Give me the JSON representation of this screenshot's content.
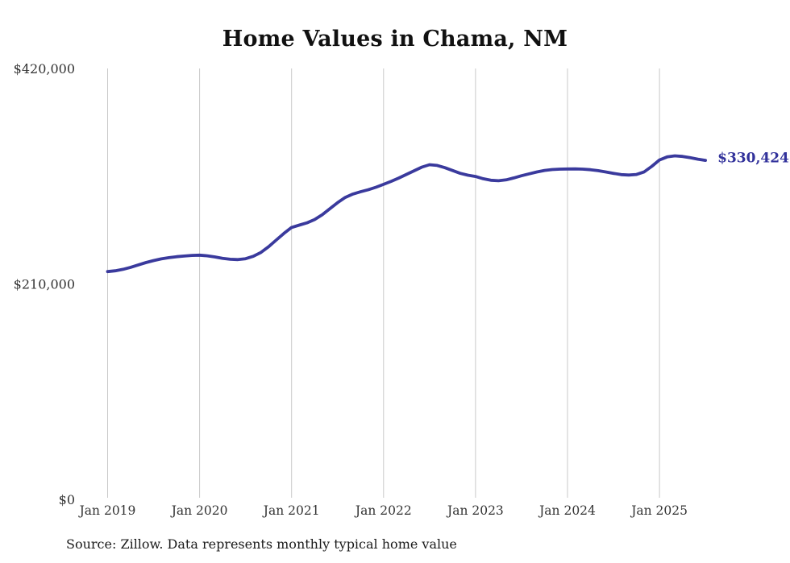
{
  "chart_data": {
    "type": "line",
    "title": "Home Values in Chama, NM",
    "source_note": "Source: Zillow. Data represents monthly typical home value",
    "end_label": "$330,424",
    "latest_value": 330424,
    "x_tick_labels": [
      "Jan 2019",
      "Jan 2020",
      "Jan 2021",
      "Jan 2022",
      "Jan 2023",
      "Jan 2024",
      "Jan 2025"
    ],
    "y_tick_labels": [
      "$0",
      "$210,000",
      "$420,000"
    ],
    "y_tick_values": [
      0,
      210000,
      420000
    ],
    "ylim": [
      0,
      420000
    ],
    "xlabel": "",
    "ylabel": "",
    "legend": "none",
    "grid": "vertical-year-gridlines",
    "series": [
      {
        "name": "Typical home value (monthly)",
        "months": [
          "2019-01",
          "2019-02",
          "2019-03",
          "2019-04",
          "2019-05",
          "2019-06",
          "2019-07",
          "2019-08",
          "2019-09",
          "2019-10",
          "2019-11",
          "2019-12",
          "2020-01",
          "2020-02",
          "2020-03",
          "2020-04",
          "2020-05",
          "2020-06",
          "2020-07",
          "2020-08",
          "2020-09",
          "2020-10",
          "2020-11",
          "2020-12",
          "2021-01",
          "2021-02",
          "2021-03",
          "2021-04",
          "2021-05",
          "2021-06",
          "2021-07",
          "2021-08",
          "2021-09",
          "2021-10",
          "2021-11",
          "2021-12",
          "2022-01",
          "2022-02",
          "2022-03",
          "2022-04",
          "2022-05",
          "2022-06",
          "2022-07",
          "2022-08",
          "2022-09",
          "2022-10",
          "2022-11",
          "2022-12",
          "2023-01",
          "2023-02",
          "2023-03",
          "2023-04",
          "2023-05",
          "2023-06",
          "2023-07",
          "2023-08",
          "2023-09",
          "2023-10",
          "2023-11",
          "2023-12",
          "2024-01",
          "2024-02",
          "2024-03",
          "2024-04",
          "2024-05",
          "2024-06",
          "2024-07",
          "2024-08",
          "2024-09",
          "2024-10",
          "2024-11",
          "2024-12",
          "2025-01",
          "2025-02",
          "2025-03",
          "2025-04",
          "2025-05",
          "2025-06",
          "2025-07"
        ],
        "values": [
          222000,
          222800,
          224200,
          226200,
          228500,
          230800,
          232800,
          234400,
          235600,
          236500,
          237200,
          237800,
          238000,
          237400,
          236300,
          235000,
          234000,
          233700,
          234600,
          236900,
          240700,
          246300,
          252800,
          259200,
          265000,
          267300,
          269500,
          272700,
          277400,
          283300,
          289200,
          294300,
          297600,
          299800,
          301800,
          304200,
          307000,
          310000,
          313200,
          316800,
          320300,
          323800,
          326200,
          325500,
          323300,
          320500,
          317800,
          316000,
          314700,
          312500,
          311000,
          310600,
          311400,
          313300,
          315400,
          317300,
          319100,
          320600,
          321500,
          321900,
          322000,
          322100,
          321900,
          321300,
          320400,
          319100,
          317800,
          316500,
          316100,
          316700,
          319200,
          324600,
          330800,
          333800,
          334800,
          334300,
          333000,
          331600,
          330424
        ]
      }
    ],
    "colors": {
      "line": "#3a3a9d",
      "end_label": "#32329b",
      "gridline": "#c9c9c9",
      "tick_text": "#333333",
      "title_text": "#111111",
      "source_text": "#1a1a1a",
      "background": "#ffffff"
    }
  }
}
